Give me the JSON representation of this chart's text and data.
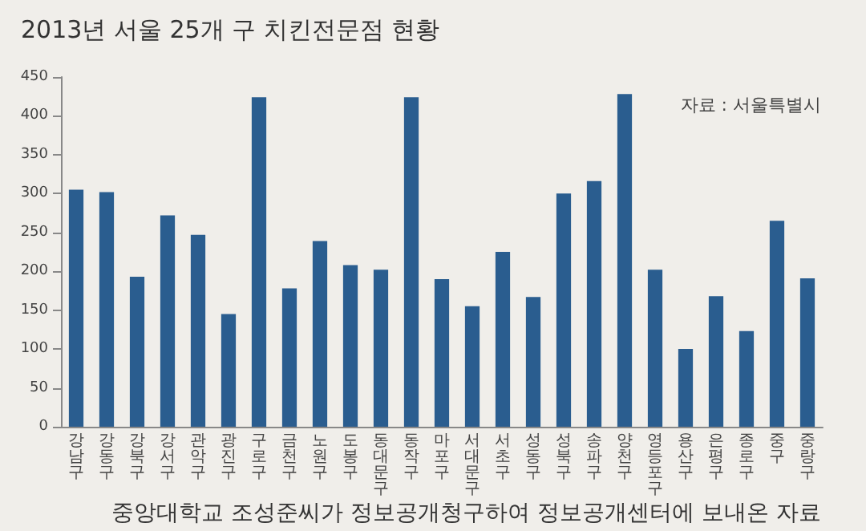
{
  "chart_data": {
    "type": "bar",
    "title": "2013년 서울 25개 구 치킨전문점 현황",
    "categories": [
      "강남구",
      "강동구",
      "강북구",
      "강서구",
      "관악구",
      "광진구",
      "구로구",
      "금천구",
      "노원구",
      "도봉구",
      "동대문구",
      "동작구",
      "마포구",
      "서대문구",
      "서초구",
      "성동구",
      "성북구",
      "송파구",
      "양천구",
      "영등포구",
      "용산구",
      "은평구",
      "종로구",
      "중구",
      "중랑구"
    ],
    "values": [
      305,
      302,
      193,
      272,
      247,
      145,
      424,
      178,
      239,
      208,
      202,
      424,
      190,
      155,
      225,
      167,
      300,
      316,
      428,
      202,
      100,
      168,
      123,
      265,
      191
    ],
    "color": "#2a5d8f",
    "ylim": [
      0,
      450
    ],
    "yticks": [
      0,
      50,
      100,
      150,
      200,
      250,
      300,
      350,
      400,
      450
    ],
    "grid": false,
    "annotations": [
      "자료 : 서울특별시",
      "중앙대학교 조성준씨가 정보공개청구하여 정보공개센터에 보내온 자료"
    ]
  }
}
